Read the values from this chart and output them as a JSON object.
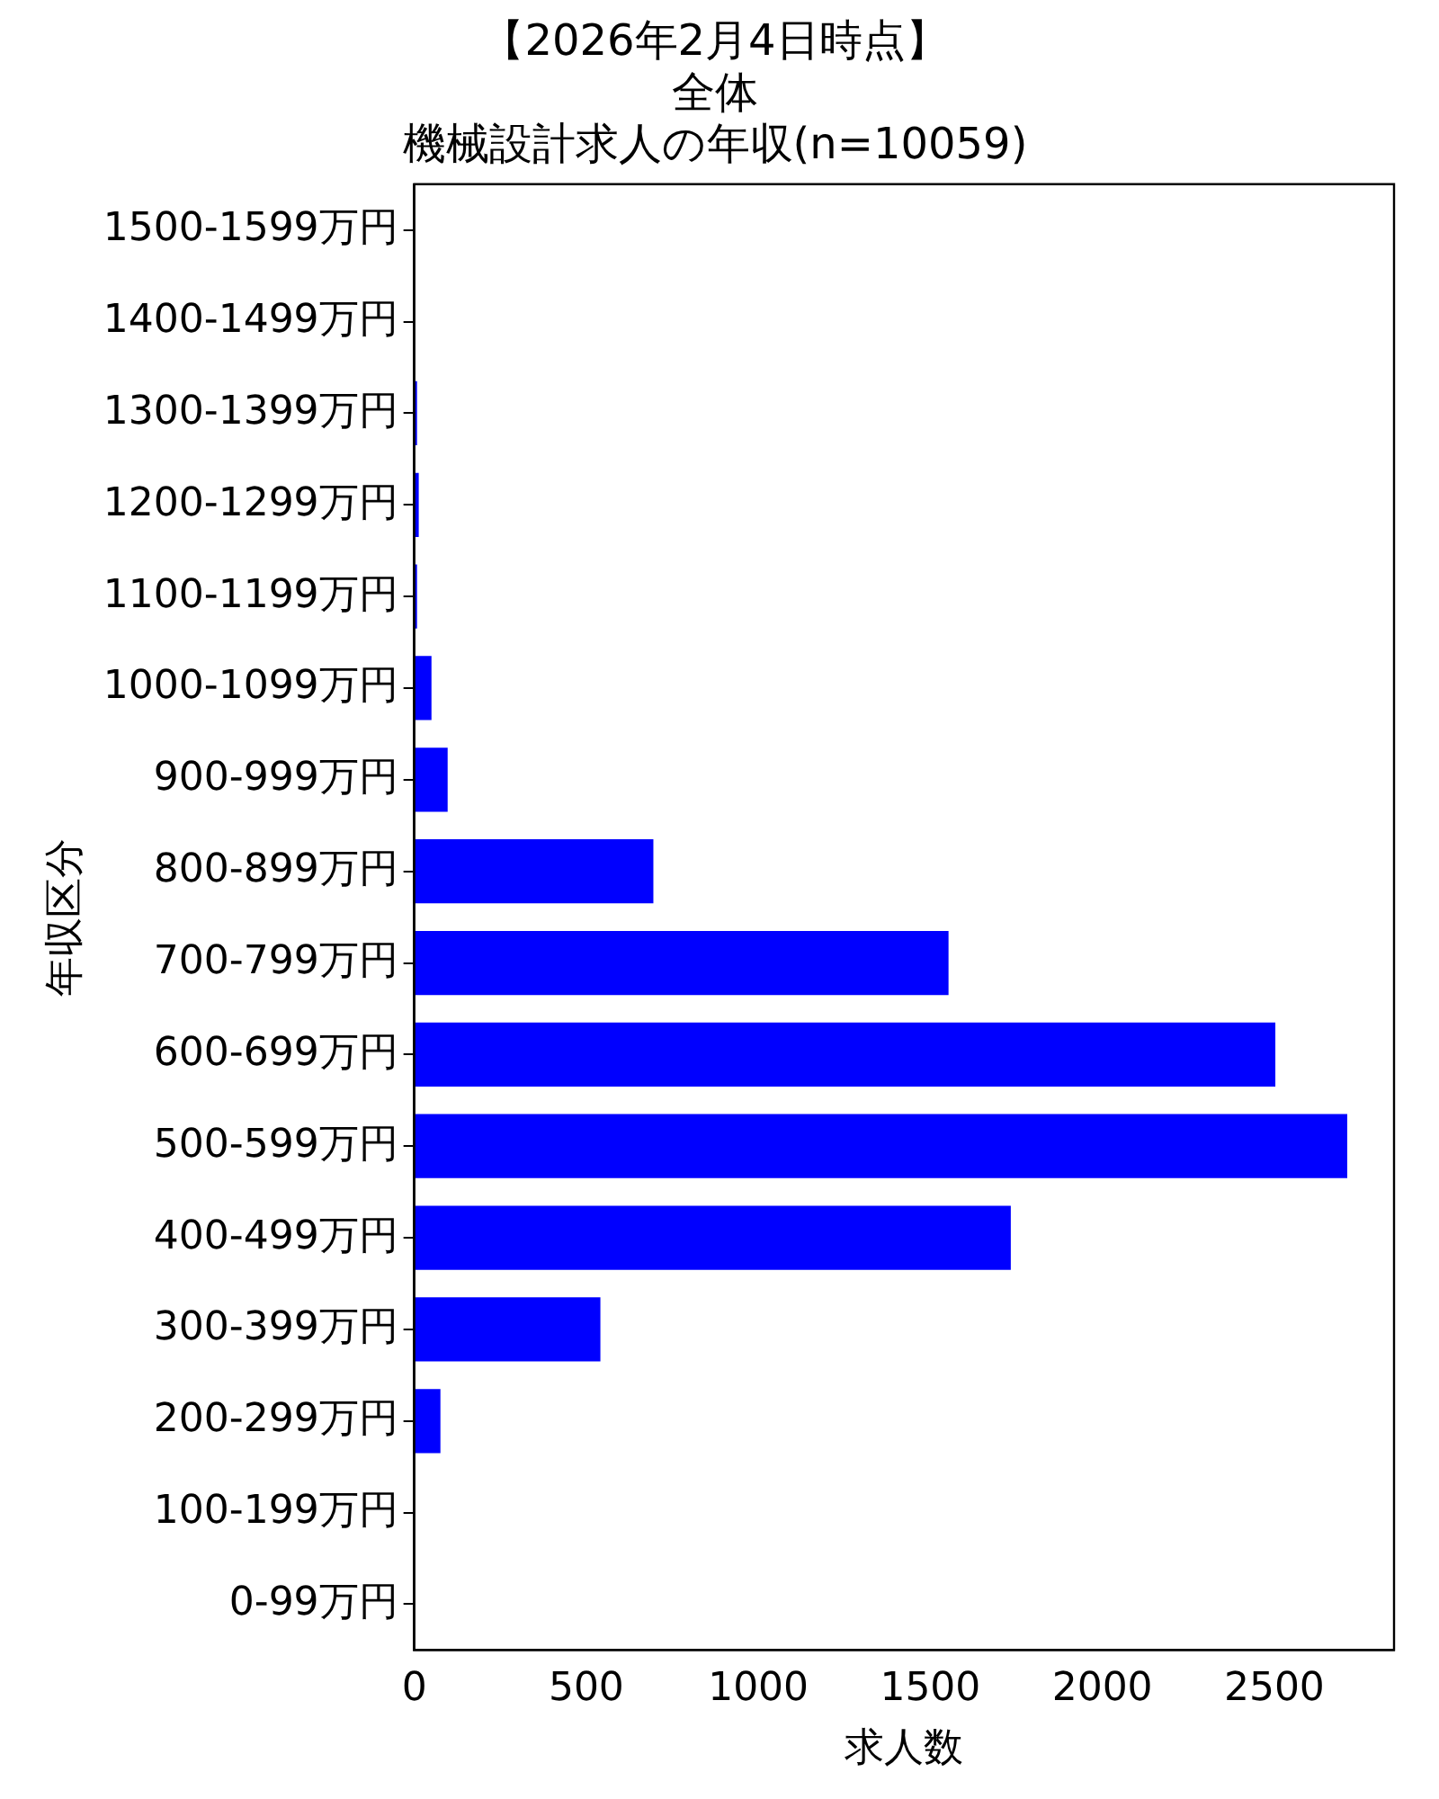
{
  "chart_data": {
    "type": "bar",
    "orientation": "horizontal",
    "title": [
      "【2026年2月4日時点】",
      "全体",
      "機械設計求人の年収(n=10059)"
    ],
    "xlabel": "求人数",
    "ylabel": "年収区分",
    "categories": [
      "1500-1599万円",
      "1400-1499万円",
      "1300-1399万円",
      "1200-1299万円",
      "1100-1199万円",
      "1000-1099万円",
      "900-999万円",
      "800-899万円",
      "700-799万円",
      "600-699万円",
      "500-599万円",
      "400-499万円",
      "300-399万円",
      "200-299万円",
      "100-199万円",
      "0-99万円"
    ],
    "values": [
      0,
      0,
      8,
      13,
      8,
      50,
      97,
      695,
      1553,
      2503,
      2712,
      1734,
      541,
      76,
      0,
      0
    ],
    "color": "#0000ff",
    "xlim": [
      0,
      2848
    ],
    "xticks": [
      0,
      500,
      1000,
      1500,
      2000,
      2500
    ],
    "grid": false,
    "legend": false
  }
}
